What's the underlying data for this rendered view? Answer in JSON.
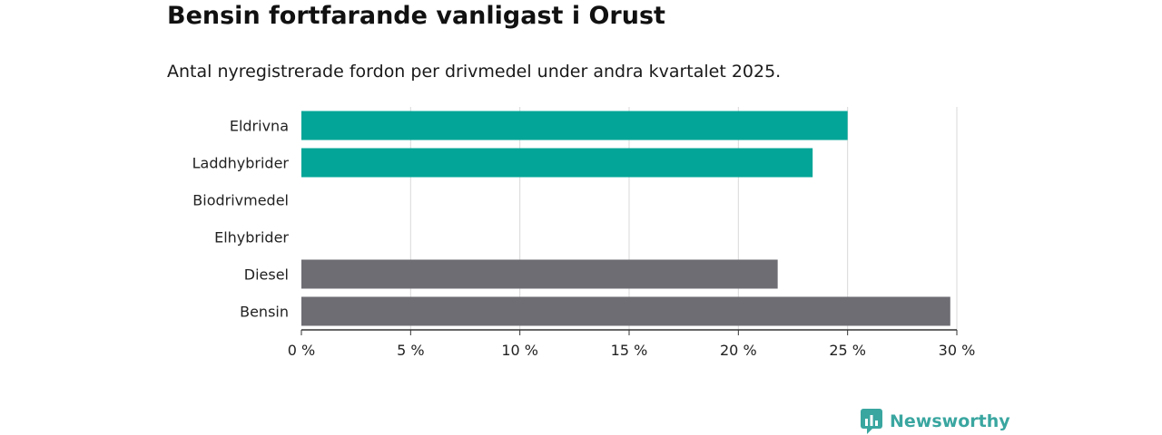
{
  "title": "Bensin fortfarande vanligast i Orust",
  "subtitle": "Antal nyregistrerade fordon per drivmedel under andra kvartalet 2025.",
  "brand": {
    "name": "Newsworthy",
    "icon": "newsworthy-logo-icon"
  },
  "colors": {
    "highlight": "#02a597",
    "default": "#6e6d74",
    "grid": "#d9d9d9",
    "axis": "#333333"
  },
  "chart_data": {
    "type": "bar",
    "orientation": "horizontal",
    "categories": [
      "Eldrivna",
      "Laddhybrider",
      "Biodrivmedel",
      "Elhybrider",
      "Diesel",
      "Bensin"
    ],
    "values": [
      25.0,
      23.4,
      0,
      0,
      21.8,
      29.7
    ],
    "colors": [
      "#02a597",
      "#02a597",
      "#6e6d74",
      "#6e6d74",
      "#6e6d74",
      "#6e6d74"
    ],
    "xlim": [
      0,
      30
    ],
    "xticks": [
      0,
      5,
      10,
      15,
      20,
      25,
      30
    ],
    "xtick_labels": [
      "0 %",
      "5 %",
      "10 %",
      "15 %",
      "20 %",
      "25 %",
      "30 %"
    ],
    "grid": true,
    "legend": "none"
  }
}
